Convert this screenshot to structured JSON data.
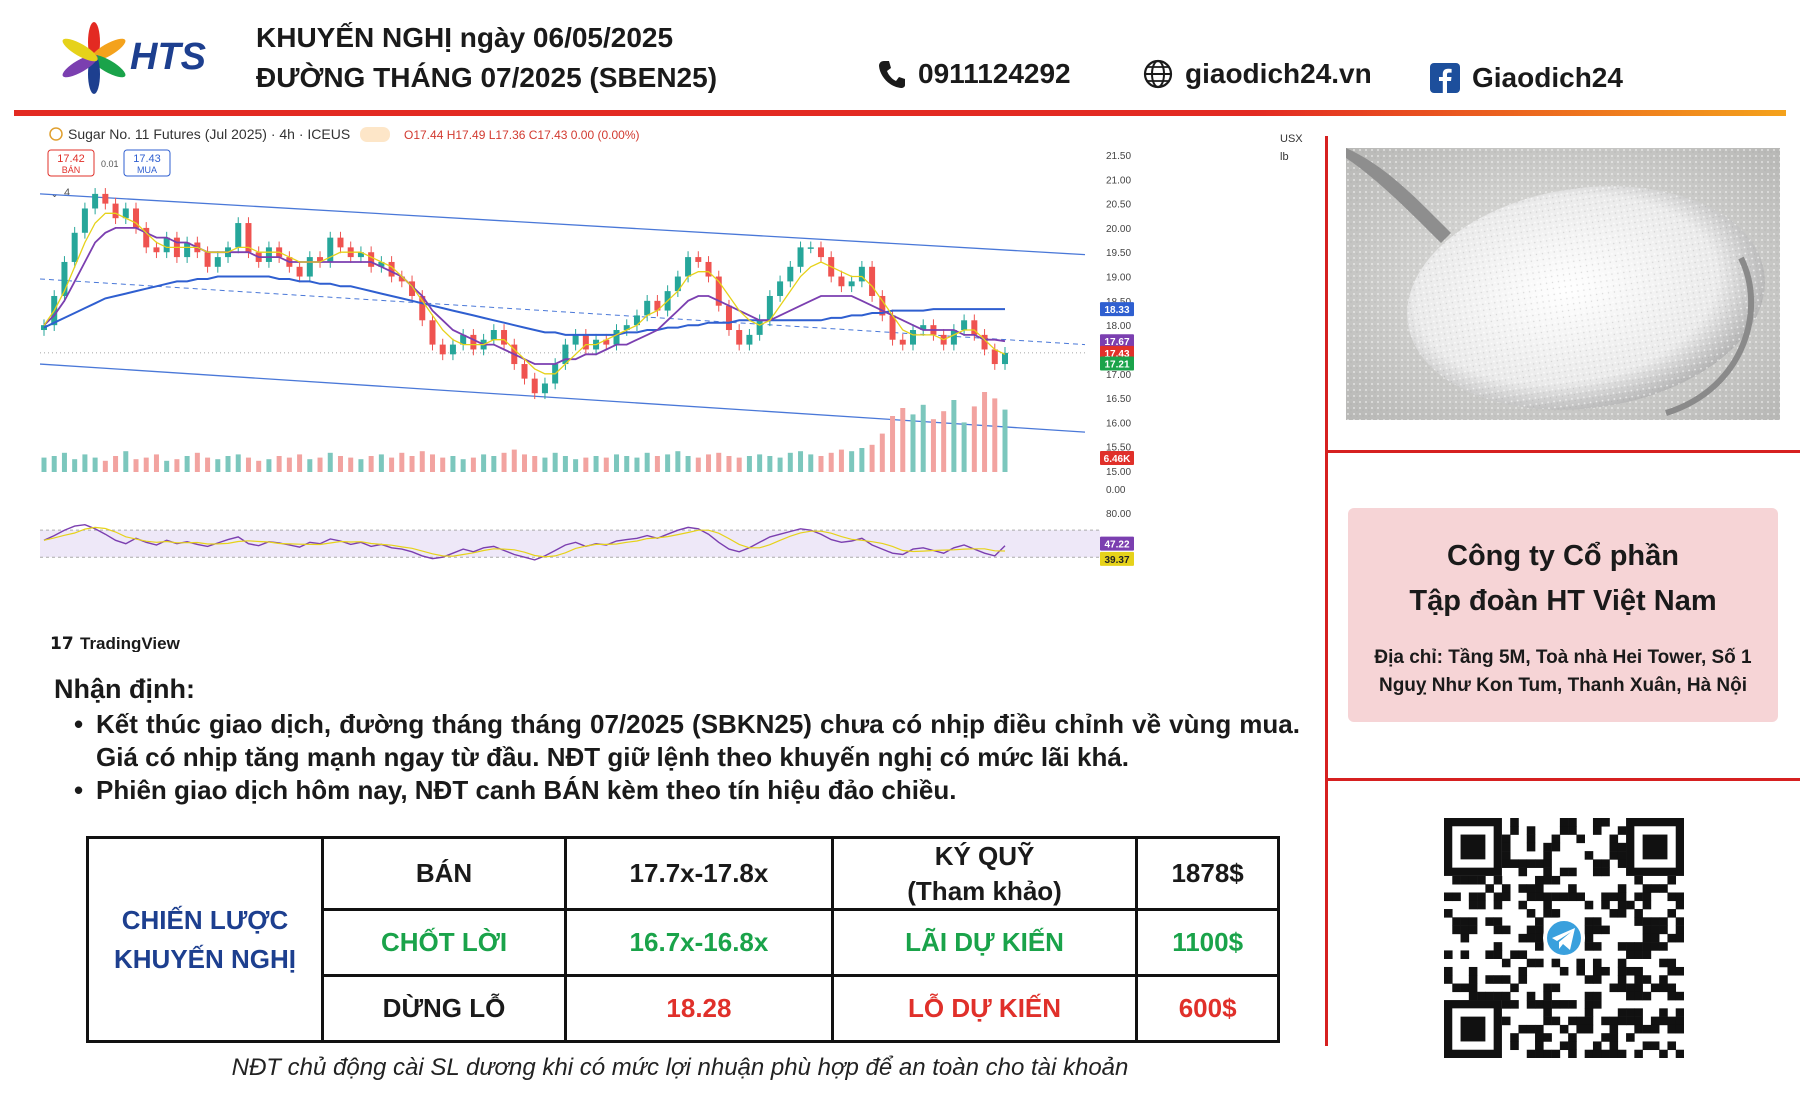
{
  "header": {
    "logo_text": "HTS",
    "title_line1": "KHUYẾN NGHỊ ngày 06/05/2025",
    "title_line2": "ĐƯỜNG THÁNG 07/2025 (SBEN25)",
    "phone": "0911124292",
    "website": "giaodich24.vn",
    "facebook": "Giaodich24",
    "icons": [
      "phone-icon",
      "globe-icon",
      "facebook-icon"
    ]
  },
  "chart_data": {
    "type": "candlestick",
    "symbol_line": "Sugar No. 11 Futures (Jul 2025) · 4h · ICEUS",
    "ohlc_text": "O17.44 H17.49 L17.36 C17.43 0.00 (0.00%)",
    "sell_box": {
      "value": "17.42",
      "label": "BÁN"
    },
    "spread": "0.01",
    "buy_box": {
      "value": "17.43",
      "label": "MUA"
    },
    "indicators_toggle": "4",
    "currency": "USX",
    "unit": "lb",
    "price_ticks": [
      "21.50",
      "21.00",
      "20.50",
      "20.00",
      "19.50",
      "19.00",
      "18.50",
      "18.00",
      "17.50",
      "17.00",
      "16.50",
      "16.00",
      "15.50",
      "15.00"
    ],
    "price_ylim": [
      15.0,
      21.5
    ],
    "price_tags": [
      {
        "value": "18.33",
        "color": "#2f5fd0"
      },
      {
        "value": "17.67",
        "color": "#7b3fb0"
      },
      {
        "value": "17.43",
        "color": "#e0302a"
      },
      {
        "value": "17.21",
        "color": "#1aa34a"
      },
      {
        "value": "6.46K",
        "color": "#e0302a"
      }
    ],
    "close_series": [
      18.0,
      18.6,
      19.3,
      19.9,
      20.4,
      20.7,
      20.5,
      20.2,
      20.4,
      20.0,
      19.6,
      19.5,
      19.8,
      19.4,
      19.7,
      19.5,
      19.2,
      19.4,
      19.6,
      20.1,
      19.5,
      19.3,
      19.6,
      19.4,
      19.2,
      19.0,
      19.4,
      19.3,
      19.8,
      19.6,
      19.4,
      19.5,
      19.2,
      19.3,
      19.0,
      18.9,
      18.6,
      18.1,
      17.6,
      17.4,
      17.6,
      17.8,
      17.5,
      17.7,
      17.9,
      17.6,
      17.2,
      16.9,
      16.6,
      16.8,
      17.2,
      17.6,
      17.8,
      17.5,
      17.7,
      17.6,
      17.9,
      18.0,
      18.2,
      18.5,
      18.3,
      18.7,
      19.0,
      19.4,
      19.3,
      19.0,
      18.4,
      17.9,
      17.6,
      17.8,
      18.1,
      18.6,
      18.9,
      19.2,
      19.6,
      19.6,
      19.4,
      19.0,
      18.8,
      18.9,
      19.2,
      18.6,
      18.2,
      17.7,
      17.6,
      17.9,
      18.0,
      17.8,
      17.6,
      17.9,
      18.1,
      17.8,
      17.5,
      17.2,
      17.43
    ],
    "ma_fast": [
      18.0,
      18.3,
      18.7,
      19.2,
      19.7,
      20.1,
      20.3,
      20.3,
      20.2,
      20.1,
      19.9,
      19.7,
      19.6,
      19.6,
      19.6,
      19.6,
      19.5,
      19.5,
      19.5,
      19.6,
      19.6,
      19.5,
      19.5,
      19.5,
      19.4,
      19.3,
      19.3,
      19.3,
      19.4,
      19.5,
      19.5,
      19.5,
      19.4,
      19.3,
      19.2,
      19.0,
      18.8,
      18.5,
      18.2,
      17.9,
      17.7,
      17.6,
      17.6,
      17.6,
      17.7,
      17.7,
      17.5,
      17.3,
      17.1,
      17.0,
      17.0,
      17.2,
      17.4,
      17.6,
      17.6,
      17.7,
      17.8,
      17.9,
      18.0,
      18.2,
      18.3,
      18.5,
      18.7,
      19.0,
      19.1,
      19.1,
      18.9,
      18.6,
      18.3,
      18.1,
      18.0,
      18.1,
      18.4,
      18.7,
      19.0,
      19.2,
      19.3,
      19.2,
      19.1,
      19.0,
      19.0,
      18.8,
      18.5,
      18.2,
      17.9,
      17.8,
      17.8,
      17.8,
      17.7,
      17.8,
      17.9,
      17.9,
      17.7,
      17.5,
      17.4
    ],
    "ma_mid": [
      18.0,
      18.2,
      18.5,
      18.9,
      19.3,
      19.7,
      19.9,
      20.0,
      20.0,
      20.0,
      19.9,
      19.8,
      19.8,
      19.7,
      19.7,
      19.6,
      19.5,
      19.5,
      19.5,
      19.5,
      19.5,
      19.4,
      19.4,
      19.4,
      19.3,
      19.3,
      19.3,
      19.3,
      19.3,
      19.3,
      19.3,
      19.3,
      19.3,
      19.2,
      19.1,
      19.0,
      18.8,
      18.6,
      18.3,
      18.1,
      17.9,
      17.8,
      17.7,
      17.6,
      17.6,
      17.5,
      17.4,
      17.3,
      17.2,
      17.2,
      17.2,
      17.3,
      17.3,
      17.4,
      17.4,
      17.5,
      17.6,
      17.6,
      17.7,
      17.8,
      17.9,
      18.1,
      18.3,
      18.5,
      18.6,
      18.6,
      18.5,
      18.4,
      18.3,
      18.2,
      18.1,
      18.1,
      18.2,
      18.3,
      18.4,
      18.5,
      18.6,
      18.6,
      18.6,
      18.6,
      18.5,
      18.4,
      18.3,
      18.2,
      18.1,
      18.0,
      17.9,
      17.9,
      17.9,
      17.9,
      17.8,
      17.8,
      17.7,
      17.7,
      17.67
    ],
    "ma_slow": [
      17.95,
      18.05,
      18.15,
      18.25,
      18.35,
      18.45,
      18.55,
      18.6,
      18.65,
      18.7,
      18.75,
      18.8,
      18.85,
      18.9,
      18.9,
      18.95,
      18.95,
      19.0,
      19.0,
      19.0,
      19.0,
      19.0,
      19.0,
      18.95,
      18.95,
      18.9,
      18.9,
      18.85,
      18.85,
      18.8,
      18.8,
      18.75,
      18.7,
      18.65,
      18.6,
      18.55,
      18.5,
      18.45,
      18.4,
      18.35,
      18.3,
      18.25,
      18.2,
      18.15,
      18.1,
      18.05,
      18.0,
      17.95,
      17.9,
      17.85,
      17.85,
      17.8,
      17.8,
      17.8,
      17.8,
      17.8,
      17.8,
      17.85,
      17.85,
      17.9,
      17.9,
      17.95,
      17.95,
      18.0,
      18.0,
      18.05,
      18.05,
      18.05,
      18.1,
      18.1,
      18.1,
      18.1,
      18.1,
      18.1,
      18.1,
      18.1,
      18.1,
      18.15,
      18.15,
      18.2,
      18.2,
      18.25,
      18.25,
      18.3,
      18.3,
      18.3,
      18.3,
      18.33,
      18.33,
      18.33,
      18.33,
      18.33,
      18.33,
      18.33,
      18.33
    ],
    "channel_upper": [
      [
        0,
        20.7
      ],
      [
        94,
        19.45
      ]
    ],
    "channel_lower": [
      [
        0,
        17.2
      ],
      [
        94,
        15.8
      ]
    ],
    "volume_series": [
      0.9,
      1.0,
      1.2,
      0.8,
      1.1,
      0.9,
      0.7,
      1.0,
      1.3,
      0.8,
      0.9,
      1.1,
      0.7,
      0.8,
      1.0,
      1.2,
      0.9,
      0.8,
      1.0,
      1.1,
      0.9,
      0.7,
      0.8,
      1.0,
      0.9,
      1.1,
      0.8,
      0.9,
      1.2,
      1.0,
      0.9,
      0.8,
      1.0,
      1.1,
      0.9,
      1.2,
      1.0,
      1.3,
      1.1,
      0.9,
      1.0,
      0.8,
      0.9,
      1.1,
      1.0,
      1.2,
      1.4,
      1.1,
      1.0,
      0.9,
      1.2,
      1.0,
      0.8,
      0.9,
      1.0,
      0.9,
      1.1,
      1.0,
      0.9,
      1.2,
      1.0,
      1.1,
      1.3,
      1.0,
      0.9,
      1.1,
      1.2,
      1.0,
      0.9,
      1.0,
      1.1,
      1.0,
      0.9,
      1.2,
      1.3,
      1.1,
      1.0,
      1.2,
      1.4,
      1.3,
      1.5,
      1.7,
      2.4,
      3.5,
      4.0,
      3.6,
      4.2,
      3.3,
      3.8,
      4.5,
      3.1,
      4.1,
      5.0,
      4.6,
      3.9
    ],
    "rsi_ticks": [
      "0.00",
      "80.00"
    ],
    "rsi_tags": [
      {
        "value": "47.22",
        "color": "#7b3fb0"
      },
      {
        "value": "39.37",
        "color": "#e6d21a"
      }
    ],
    "rsi_series": [
      55,
      62,
      70,
      76,
      78,
      72,
      64,
      55,
      50,
      58,
      52,
      48,
      55,
      50,
      53,
      49,
      46,
      51,
      56,
      60,
      50,
      47,
      53,
      51,
      48,
      45,
      52,
      50,
      57,
      54,
      49,
      52,
      46,
      49,
      44,
      42,
      38,
      32,
      28,
      30,
      36,
      42,
      38,
      44,
      46,
      40,
      34,
      30,
      26,
      32,
      40,
      48,
      52,
      46,
      50,
      48,
      54,
      56,
      58,
      62,
      58,
      64,
      70,
      74,
      72,
      64,
      52,
      42,
      38,
      44,
      52,
      60,
      64,
      68,
      72,
      70,
      64,
      56,
      52,
      54,
      58,
      48,
      42,
      36,
      34,
      42,
      44,
      40,
      36,
      44,
      48,
      42,
      36,
      32,
      47
    ],
    "watermark": "TradingView"
  },
  "right_panel": {
    "company_name_line1": "Công ty Cổ phần",
    "company_name_line2": "Tập đoàn HT Việt Nam",
    "address": "Địa chỉ: Tầng 5M, Toà nhà Hei Tower, Số 1 Nguỵ Như Kon Tum, Thanh Xuân, Hà Nội",
    "qr_icon": "telegram-qr-code"
  },
  "analysis": {
    "heading": "Nhận định:",
    "bullets": [
      "Kết thúc giao dịch, đường tháng tháng 07/2025 (SBKN25) chưa có nhịp điều chỉnh về vùng mua. Giá có nhịp tăng mạnh ngay từ đầu. NĐT giữ lệnh theo khuyến nghị có mức lãi khá.",
      "Phiên giao dịch hôm nay, NĐT canh BÁN kèm theo tín hiệu đảo chiều."
    ]
  },
  "strategy": {
    "label_line1": "CHIẾN LƯỢC",
    "label_line2": "KHUYẾN NGHỊ",
    "action": "BÁN",
    "entry": "17.7x-17.8x",
    "margin_label_line1": "KÝ QUỸ",
    "margin_label_line2": "(Tham khảo)",
    "margin_value": "1878$",
    "tp_label": "CHỐT LỜI",
    "tp_value": "16.7x-16.8x",
    "profit_label": "LÃI DỰ KIẾN",
    "profit_value": "1100$",
    "sl_label": "DỪNG LỖ",
    "sl_value": "18.28",
    "loss_label": "LỖ DỰ KIẾN",
    "loss_value": "600$",
    "colors": {
      "blue": "#1d3f8f",
      "green": "#1aa34a",
      "red": "#e0302a"
    }
  },
  "footer_note": "NĐT chủ động cài SL dương khi có mức lợi nhuận phù hợp để an toàn cho tài khoản"
}
